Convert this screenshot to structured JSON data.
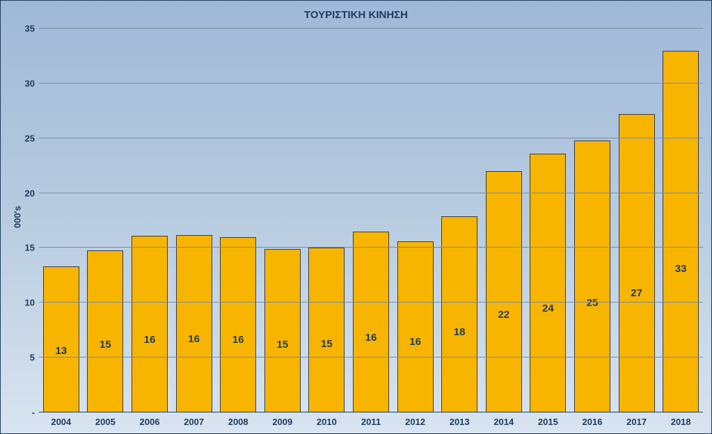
{
  "chart": {
    "type": "bar",
    "title": "ΤΟΥΡΙΣΤΙΚΗ ΚΙΝΗΣΗ",
    "title_fontsize": 15,
    "title_color": "#1f3a5f",
    "y_axis_label": "000's",
    "y_axis_label_fontsize": 13,
    "categories": [
      "2004",
      "2005",
      "2006",
      "2007",
      "2008",
      "2009",
      "2010",
      "2011",
      "2012",
      "2013",
      "2014",
      "2015",
      "2016",
      "2017",
      "2018"
    ],
    "values": [
      13.3,
      14.8,
      16.1,
      16.2,
      16.0,
      14.9,
      15.0,
      16.5,
      15.6,
      17.9,
      22.0,
      23.6,
      24.8,
      27.2,
      33.0
    ],
    "value_labels": [
      "13",
      "15",
      "16",
      "16",
      "16",
      "15",
      "15",
      "16",
      "16",
      "18",
      "22",
      "24",
      "25",
      "27",
      "33"
    ],
    "bar_color": "#f8b500",
    "bar_border_color": "#3a3a3a",
    "bar_width_ratio": 0.82,
    "data_label_fontsize": 15,
    "data_label_color": "#1f3a5f",
    "axis_label_fontsize": 13,
    "axis_label_color": "#1f3a5f",
    "ylim": [
      0,
      35
    ],
    "ytick_step": 5,
    "ytick_labels": [
      "-",
      "5",
      "10",
      "15",
      "20",
      "25",
      "30",
      "35"
    ],
    "grid_color": "#7a8aa0",
    "background_gradient_top": "#a0b8d8",
    "background_gradient_bottom": "#d8e4f0",
    "border_color": "#1f3a5f"
  }
}
